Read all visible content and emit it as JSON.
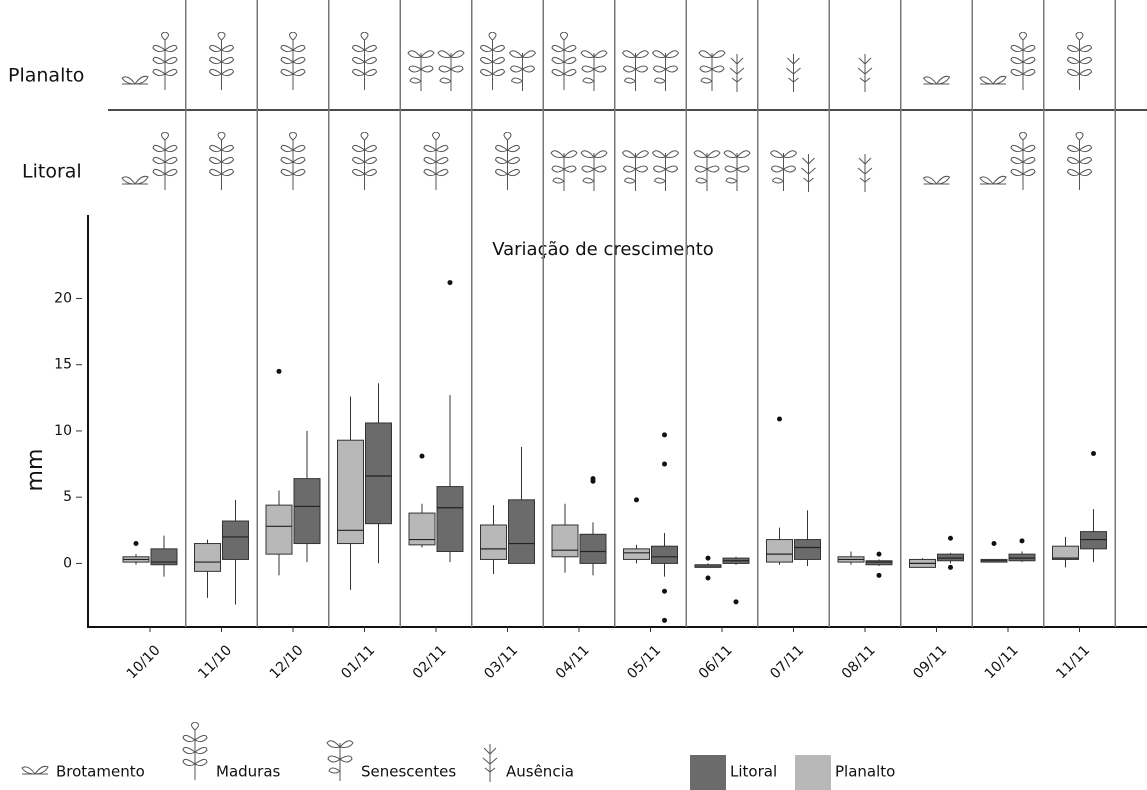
{
  "chart_data": {
    "type": "box",
    "title": "Variação de crescimento",
    "y_label": "mm",
    "categories": [
      "10/10",
      "11/10",
      "12/10",
      "01/11",
      "02/11",
      "03/11",
      "04/11",
      "05/11",
      "06/11",
      "07/11",
      "08/11",
      "09/11",
      "10/11",
      "11/11"
    ],
    "ylim": [
      -4.8,
      26.3
    ],
    "yticks": [
      0,
      5,
      10,
      15,
      20
    ],
    "phenology_rows": [
      "Planalto",
      "Litoral"
    ],
    "phenology_legend": [
      "Brotamento",
      "Maduras",
      "Senescentes",
      "Ausência"
    ],
    "series": [
      {
        "name": "Litoral",
        "color": "#6b6b6b",
        "boxes": [
          {
            "min": -1.0,
            "q1": -0.1,
            "median": 0.1,
            "q3": 1.1,
            "max": 2.1,
            "outliers": []
          },
          {
            "min": -3.1,
            "q1": 0.3,
            "median": 2.0,
            "q3": 3.2,
            "max": 4.8,
            "outliers": []
          },
          {
            "min": 0.1,
            "q1": 1.5,
            "median": 4.3,
            "q3": 6.4,
            "max": 10.0,
            "outliers": []
          },
          {
            "min": 0.0,
            "q1": 3.0,
            "median": 6.6,
            "q3": 10.6,
            "max": 13.6,
            "outliers": []
          },
          {
            "min": 0.1,
            "q1": 0.9,
            "median": 4.2,
            "q3": 5.8,
            "max": 12.7,
            "outliers": [
              21.2
            ]
          },
          {
            "min": 0.0,
            "q1": 0.0,
            "median": 1.5,
            "q3": 4.8,
            "max": 8.8,
            "outliers": []
          },
          {
            "min": -0.9,
            "q1": 0.0,
            "median": 0.9,
            "q3": 2.2,
            "max": 3.1,
            "outliers": [
              6.2,
              6.4
            ]
          },
          {
            "min": -1.0,
            "q1": 0.0,
            "median": 0.5,
            "q3": 1.3,
            "max": 2.3,
            "outliers": [
              9.7,
              7.5,
              -2.1,
              -4.3
            ]
          },
          {
            "min": -0.1,
            "q1": 0.0,
            "median": 0.2,
            "q3": 0.4,
            "max": 0.5,
            "outliers": [
              -2.9
            ]
          },
          {
            "min": -0.2,
            "q1": 0.3,
            "median": 1.2,
            "q3": 1.8,
            "max": 4.0,
            "outliers": []
          },
          {
            "min": -0.2,
            "q1": -0.1,
            "median": 0.1,
            "q3": 0.2,
            "max": 0.3,
            "outliers": [
              0.7,
              -0.9
            ]
          },
          {
            "min": 0.0,
            "q1": 0.2,
            "median": 0.4,
            "q3": 0.7,
            "max": 0.8,
            "outliers": [
              1.9,
              -0.3
            ]
          },
          {
            "min": 0.1,
            "q1": 0.2,
            "median": 0.4,
            "q3": 0.7,
            "max": 0.9,
            "outliers": [
              1.7
            ]
          },
          {
            "min": 0.1,
            "q1": 1.1,
            "median": 1.8,
            "q3": 2.4,
            "max": 4.1,
            "outliers": [
              8.3
            ]
          }
        ]
      },
      {
        "name": "Planalto",
        "color": "#b8b8b8",
        "boxes": [
          {
            "min": -0.1,
            "q1": 0.1,
            "median": 0.3,
            "q3": 0.5,
            "max": 0.7,
            "outliers": [
              1.5
            ]
          },
          {
            "min": -2.6,
            "q1": -0.6,
            "median": 0.1,
            "q3": 1.5,
            "max": 1.8,
            "outliers": []
          },
          {
            "min": -0.9,
            "q1": 0.7,
            "median": 2.8,
            "q3": 4.4,
            "max": 5.5,
            "outliers": [
              14.5
            ]
          },
          {
            "min": -2.0,
            "q1": 1.5,
            "median": 2.5,
            "q3": 9.3,
            "max": 12.6,
            "outliers": []
          },
          {
            "min": 1.2,
            "q1": 1.4,
            "median": 1.8,
            "q3": 3.8,
            "max": 4.5,
            "outliers": [
              8.1
            ]
          },
          {
            "min": -0.8,
            "q1": 0.3,
            "median": 1.1,
            "q3": 2.9,
            "max": 4.4,
            "outliers": []
          },
          {
            "min": -0.7,
            "q1": 0.5,
            "median": 1.0,
            "q3": 2.9,
            "max": 4.5,
            "outliers": []
          },
          {
            "min": 0.0,
            "q1": 0.3,
            "median": 0.8,
            "q3": 1.1,
            "max": 1.4,
            "outliers": [
              4.8
            ]
          },
          {
            "min": -0.3,
            "q1": -0.3,
            "median": -0.2,
            "q3": -0.1,
            "max": 0.0,
            "outliers": [
              0.4,
              -1.1
            ]
          },
          {
            "min": -0.1,
            "q1": 0.1,
            "median": 0.7,
            "q3": 1.8,
            "max": 2.7,
            "outliers": [
              10.9
            ]
          },
          {
            "min": -0.1,
            "q1": 0.1,
            "median": 0.3,
            "q3": 0.5,
            "max": 0.9,
            "outliers": []
          },
          {
            "min": -0.3,
            "q1": -0.3,
            "median": 0.0,
            "q3": 0.3,
            "max": 0.4,
            "outliers": []
          },
          {
            "min": 0.1,
            "q1": 0.1,
            "median": 0.2,
            "q3": 0.3,
            "max": 0.3,
            "outliers": [
              1.5
            ]
          },
          {
            "min": -0.3,
            "q1": 0.3,
            "median": 0.4,
            "q3": 1.3,
            "max": 2.0,
            "outliers": []
          }
        ]
      }
    ]
  }
}
